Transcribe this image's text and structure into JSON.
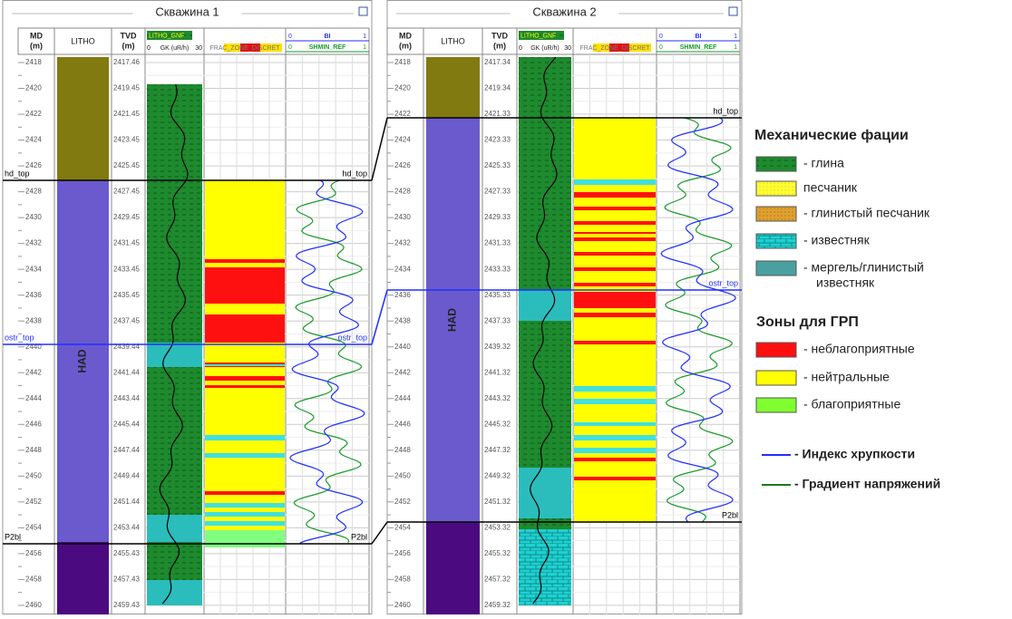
{
  "wells": [
    {
      "title": "Скважина 1",
      "formation": "HAD",
      "tvd_labels": [
        "2417.46",
        "2419.45",
        "2421.45",
        "2423.45",
        "2425.45",
        "2427.45",
        "2429.45",
        "2431.45",
        "2433.45",
        "2435.45",
        "2437.45",
        "2439.44",
        "2441.44",
        "2443.44",
        "2445.44",
        "2447.44",
        "2449.44",
        "2451.44",
        "2453.44",
        "2455.43",
        "2457.43",
        "2459.43"
      ],
      "markers": [
        {
          "left": "hd_top",
          "right": "hd_top"
        },
        {
          "left": "ostr_top",
          "right": "ostr_top"
        },
        {
          "left": "P2bl",
          "right": "P2bl"
        }
      ]
    },
    {
      "title": "Скважина 2",
      "formation": "HAD",
      "tvd_labels": [
        "2417.34",
        "2419.34",
        "2421.33",
        "2423.33",
        "2425.33",
        "2427.33",
        "2429.33",
        "2431.33",
        "2433.33",
        "2435.33",
        "2437.33",
        "2439.32",
        "2441.32",
        "2443.32",
        "2445.32",
        "2447.32",
        "2449.32",
        "2451.32",
        "2453.32",
        "2455.32",
        "2457.32",
        "2459.32"
      ],
      "markers": [
        {
          "right": "hd_top"
        },
        {
          "right": "ostr_top"
        },
        {
          "right": "P2bl"
        }
      ]
    }
  ],
  "track_headers": {
    "md": "MD",
    "md_unit": "(m)",
    "litho": "LITHO",
    "tvd": "TVD",
    "tvd_unit": "(m)",
    "litho_gnf": "LITHO_GNF",
    "gk_min": "0",
    "gk_name": "GK (uR/h)",
    "gk_max": "30",
    "frac": "FRAC_ZONE_DISCRET",
    "bi_min": "0",
    "bi_name": "BI",
    "bi_max": "1",
    "sh_min": "0",
    "sh_name": "SHMIN_REF",
    "sh_max": "1"
  },
  "md_ticks": [
    "2418",
    "2420",
    "2422",
    "2424",
    "2426",
    "2428",
    "2430",
    "2432",
    "2434",
    "2436",
    "2438",
    "2440",
    "2442",
    "2444",
    "2446",
    "2448",
    "2450",
    "2452",
    "2454",
    "2456",
    "2458",
    "2460"
  ],
  "legend": {
    "facies_title": "Механические фации",
    "facies": [
      "- глина",
      "песчаник",
      "- глинистый песчаник",
      "- известняк",
      "- мергель/глинистый",
      "известняк"
    ],
    "zones_title": "Зоны для ГРП",
    "zones": [
      "- неблагоприятные",
      "- нейтральные",
      "- благоприятные"
    ],
    "curves": [
      "- Индекс хрупкости",
      "- Градиент напряжений"
    ]
  }
}
